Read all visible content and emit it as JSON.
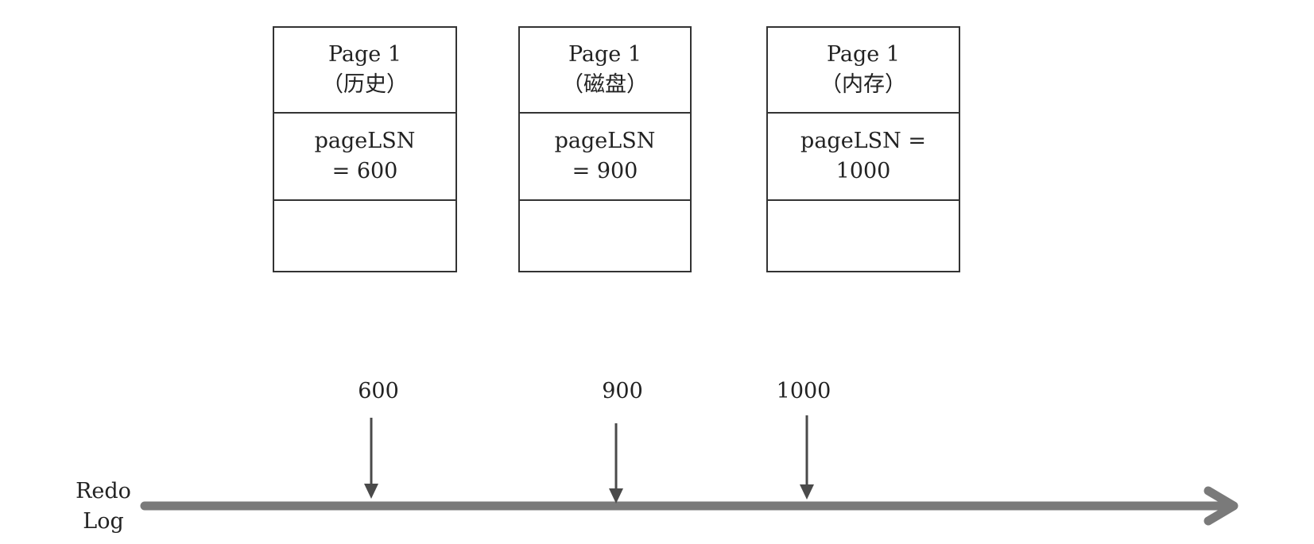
{
  "pages": [
    {
      "title": "Page 1\n（历史）",
      "lsn": "pageLSN\n= 600"
    },
    {
      "title": "Page 1\n（磁盘）",
      "lsn": "pageLSN\n= 900"
    },
    {
      "title": "Page 1\n（内存）",
      "lsn": "pageLSN =\n1000"
    }
  ],
  "timeline": {
    "label": "Redo\nLog",
    "markers": [
      {
        "label": "600"
      },
      {
        "label": "900"
      },
      {
        "label": "1000"
      }
    ]
  },
  "colors": {
    "box_stroke": "#333333",
    "timeline": "#7a7a7a",
    "marker_arrow": "#4a4a4a"
  }
}
